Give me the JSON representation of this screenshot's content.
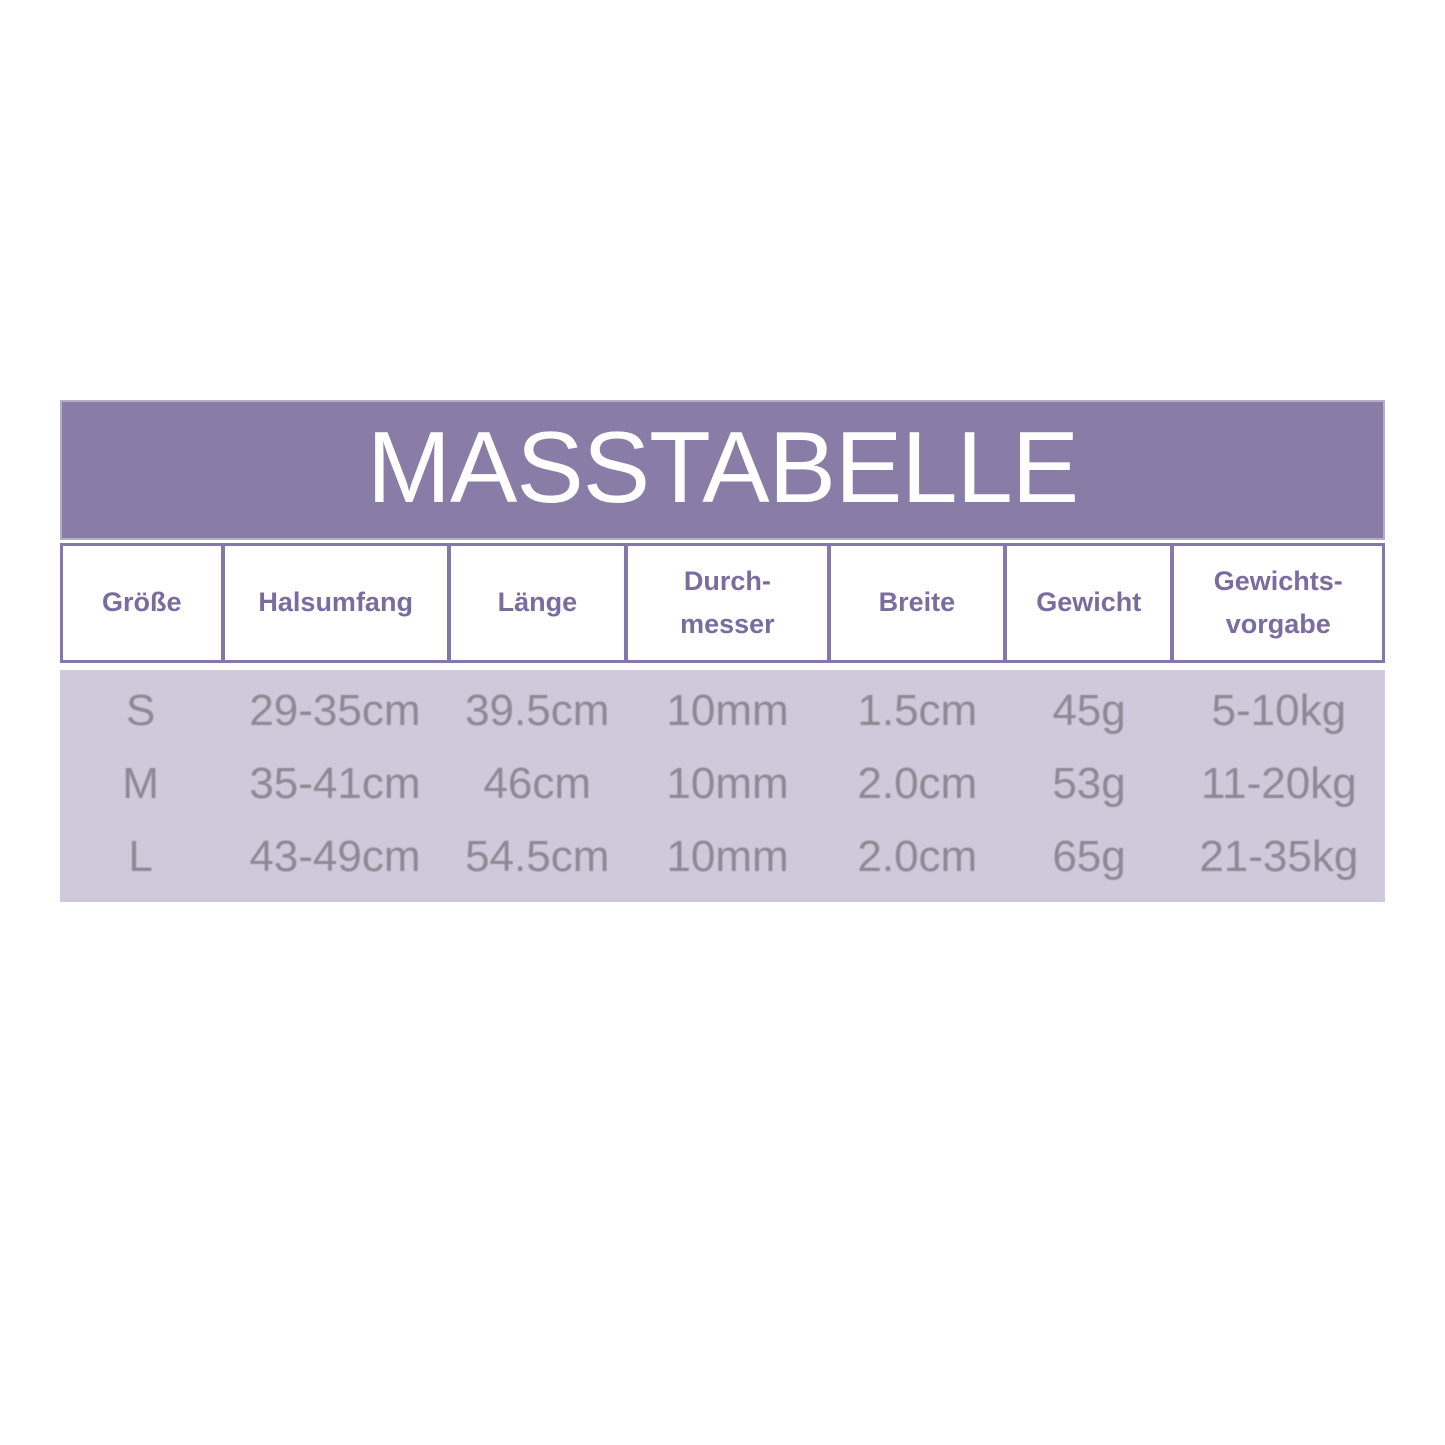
{
  "banner": {
    "title": "MASSTABELLE"
  },
  "header": {
    "labels": [
      "Größe",
      "Halsumfang",
      "Länge",
      "Durch-\nmesser",
      "Breite",
      "Gewicht",
      "Gewichts-\nvorgabe"
    ]
  },
  "chart_data": {
    "type": "table",
    "title": "MASSTABELLE",
    "columns": [
      "Größe",
      "Halsumfang",
      "Länge",
      "Durchmesser",
      "Breite",
      "Gewicht",
      "Gewichtsvorgabe"
    ],
    "rows": [
      [
        "S",
        "29-35cm",
        "39.5cm",
        "10mm",
        "1.5cm",
        "45g",
        "5-10kg"
      ],
      [
        "M",
        "35-41cm",
        "46cm",
        "10mm",
        "2.0cm",
        "53g",
        "11-20kg"
      ],
      [
        "L",
        "43-49cm",
        "54.5cm",
        "10mm",
        "2.0cm",
        "65g",
        "21-35kg"
      ]
    ]
  },
  "colors": {
    "banner_bg": "#897CA6",
    "banner_border": "#B5ACC7",
    "banner_text": "#FFFFFF",
    "table_border": "#8478A8",
    "header_cell_bg": "#FFFFFF",
    "header_text": "#7A6C9E",
    "data_bg": "#CFC9DB",
    "data_text": "#8C8A94",
    "page_bg": "#FFFFFF"
  }
}
